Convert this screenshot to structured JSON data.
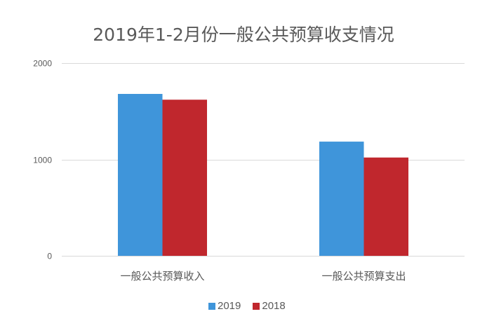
{
  "chart_data": {
    "type": "bar",
    "title": "2019年1-2月份一般公共预算收支情况",
    "categories": [
      "一般公共预算收入",
      "一般公共预算支出"
    ],
    "series": [
      {
        "name": "2019",
        "values": [
          1680,
          1185
        ],
        "color": "#3f95da"
      },
      {
        "name": "2018",
        "values": [
          1620,
          1020
        ],
        "color": "#c0272d"
      }
    ],
    "ylim": [
      0,
      2000
    ],
    "yticks": [
      0,
      1000,
      2000
    ],
    "grid": true,
    "legend": "bottom"
  },
  "colors": {
    "text": "#595959",
    "grid": "#d9d9d9",
    "background": "#ffffff"
  }
}
